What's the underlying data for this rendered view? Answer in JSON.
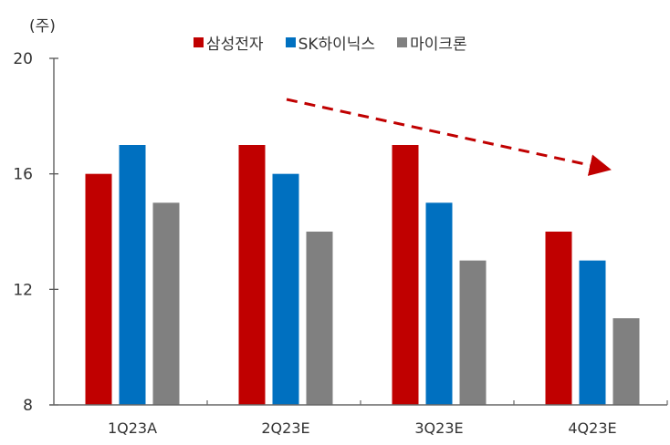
{
  "chart_data": {
    "type": "bar",
    "title": "",
    "unit_label": "(주)",
    "xlabel": "",
    "ylabel": "(주)",
    "categories": [
      "1Q23A",
      "2Q23E",
      "3Q23E",
      "4Q23E"
    ],
    "series": [
      {
        "name": "삼성전자",
        "color": "#C00000",
        "values": [
          16,
          17,
          17,
          14
        ]
      },
      {
        "name": "SK하이닉스",
        "color": "#0070C0",
        "values": [
          17,
          16,
          15,
          13
        ]
      },
      {
        "name": "마이크론",
        "color": "#808080",
        "values": [
          15,
          14,
          13,
          11
        ]
      }
    ],
    "ylim": [
      8,
      20
    ],
    "yticks": [
      8,
      12,
      16,
      20
    ],
    "grid": false,
    "legend_position": "top",
    "annotations": [
      {
        "type": "dashed-arrow",
        "color": "#C00000",
        "direction": "downward trend",
        "from_category": "2Q23E",
        "to_category": "4Q23E"
      }
    ]
  },
  "legend": {
    "items": [
      {
        "label": "삼성전자",
        "color": "#C00000"
      },
      {
        "label": "SK하이닉스",
        "color": "#0070C0"
      },
      {
        "label": "마이크론",
        "color": "#808080"
      }
    ]
  }
}
